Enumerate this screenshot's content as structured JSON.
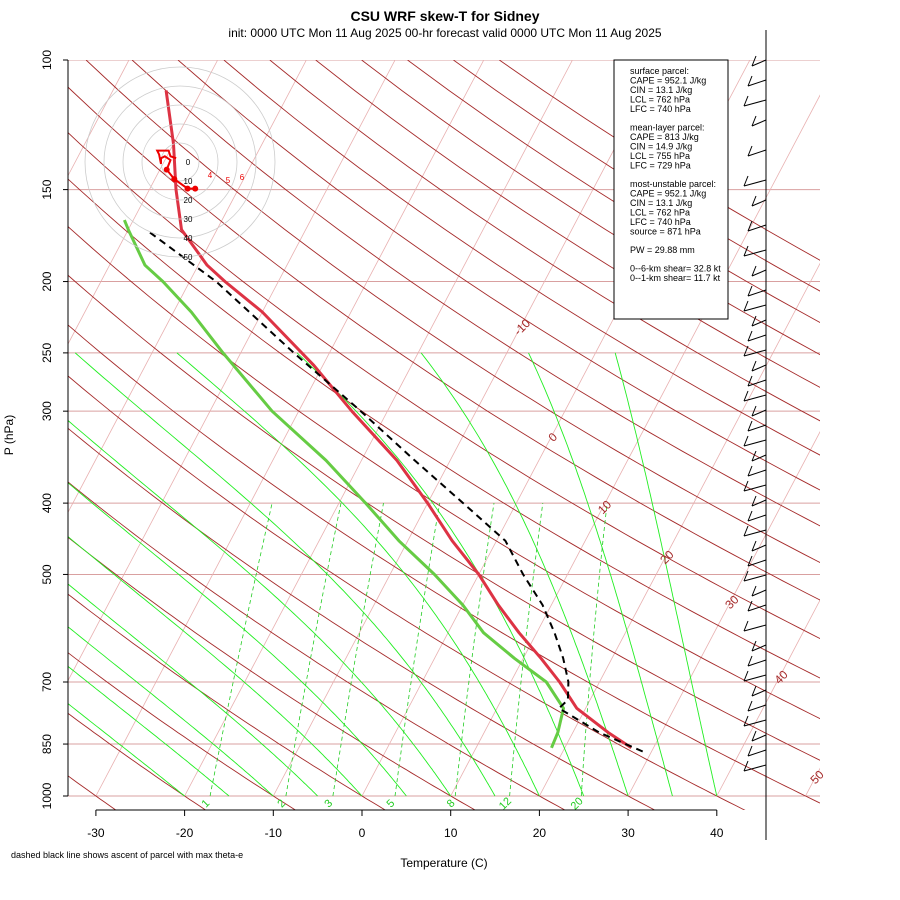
{
  "title": "CSU WRF skew-T for Sidney",
  "subtitle": "init: 0000 UTC Mon 11 Aug 2025     00-hr forecast valid 0000 UTC Mon 11 Aug 2025",
  "footnote": "dashed black line shows ascent of parcel with max theta-e",
  "colors": {
    "temperature": "#dd3344",
    "dewpoint": "#66cc44",
    "parcel": "#000000",
    "isotherm": "#a52a2a",
    "dry_adiabat": "#a52a2a",
    "moist_adiabat": "#22ee22",
    "mixing_ratio": "#22cc22",
    "hodograph": "#ee0000"
  },
  "stats_box": {
    "surface": [
      "surface parcel:",
      "CAPE = 952.1 J/kg",
      "CIN = 13.1 J/kg",
      "LCL = 762 hPa",
      "LFC = 740 hPa"
    ],
    "mean_layer": [
      "mean-layer parcel:",
      "CAPE = 813 J/kg",
      "CIN = 14.9 J/kg",
      "LCL = 755 hPa",
      "LFC = 729 hPa"
    ],
    "most_unstable": [
      "most-unstable parcel:",
      "CAPE = 952.1 J/kg",
      "CIN = 13.1 J/kg",
      "LCL = 762 hPa",
      "LFC = 740 hPa",
      "source = 871 hPa"
    ],
    "pw": "PW =  29.88 mm",
    "shear": [
      "0--6-km shear= 32.8 kt",
      "0--1-km shear= 11.7 kt"
    ]
  },
  "hodograph": {
    "ring_labels": [
      "0",
      "10",
      "20",
      "30",
      "40",
      "50"
    ],
    "point_labels": [
      "6",
      "5",
      "4",
      "3",
      "2",
      "1"
    ],
    "points_kt": [
      [
        8,
        -14
      ],
      [
        4,
        -14
      ],
      [
        -3,
        -9
      ],
      [
        -7,
        -4
      ],
      [
        -5,
        1
      ],
      [
        -8,
        3
      ],
      [
        -10,
        2
      ],
      [
        -10,
        -1
      ],
      [
        -11,
        4
      ],
      [
        -12,
        6
      ],
      [
        -10,
        6
      ],
      [
        -6,
        6
      ],
      [
        -5,
        3
      ],
      [
        -2,
        2
      ]
    ]
  },
  "chart_data": {
    "type": "line",
    "title": "CSU WRF skew-T for Sidney",
    "xlabel": "Temperature (C)",
    "ylabel": "P (hPa)",
    "x_ticks": [
      -30,
      -20,
      -10,
      0,
      10,
      20,
      30,
      40
    ],
    "xlim": [
      -33,
      45
    ],
    "y_ticks": [
      100,
      150,
      200,
      250,
      300,
      400,
      500,
      700,
      850,
      1000
    ],
    "ylim": [
      1000,
      100
    ],
    "y_scale": "log",
    "skew": true,
    "isotherm_labels": [
      "-10",
      "0",
      "10",
      "20",
      "30",
      "40",
      "50"
    ],
    "mixing_ratio_labels": [
      "1",
      "2",
      "3",
      "5",
      "8",
      "12",
      "20"
    ],
    "series": [
      {
        "name": "temperature",
        "p": [
          860,
          820,
          760,
          700,
          650,
          600,
          550,
          500,
          450,
          400,
          350,
          300,
          260,
          220,
          200,
          190,
          170,
          150,
          130,
          110
        ],
        "t": [
          27.5,
          24,
          19,
          15.5,
          12,
          8,
          4,
          0,
          -5,
          -10,
          -16,
          -24,
          -31,
          -40,
          -46,
          -49,
          -54,
          -57,
          -60,
          -64
        ]
      },
      {
        "name": "dewpoint",
        "p": [
          860,
          820,
          760,
          700,
          650,
          600,
          550,
          500,
          450,
          400,
          350,
          300,
          250,
          220,
          200,
          190,
          170,
          165
        ],
        "t": [
          18.5,
          18.3,
          17.5,
          14,
          9,
          4,
          0,
          -5,
          -11,
          -17,
          -24,
          -33,
          -42,
          -48,
          -53,
          -56,
          -60,
          -61
        ]
      },
      {
        "name": "parcel",
        "p": [
          870,
          820,
          760,
          740,
          700,
          650,
          600,
          550,
          500,
          450,
          400,
          350,
          300,
          250,
          200,
          170
        ],
        "t": [
          29,
          23,
          17,
          17.5,
          16.5,
          14.5,
          12,
          9,
          5,
          1,
          -6,
          -14,
          -23,
          -34,
          -47,
          -58
        ]
      }
    ]
  }
}
